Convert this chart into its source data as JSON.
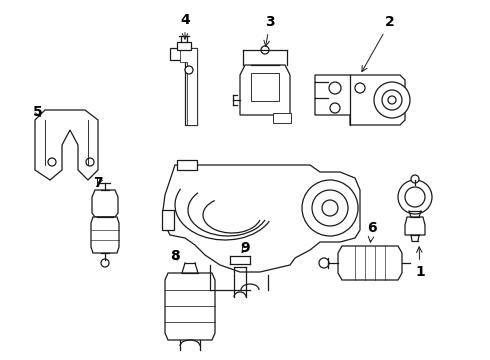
{
  "bg_color": "#ffffff",
  "line_color": "#1a1a1a",
  "label_color": "#000000",
  "figsize": [
    4.9,
    3.6
  ],
  "dpi": 100,
  "font_size": 10,
  "font_weight": "bold"
}
